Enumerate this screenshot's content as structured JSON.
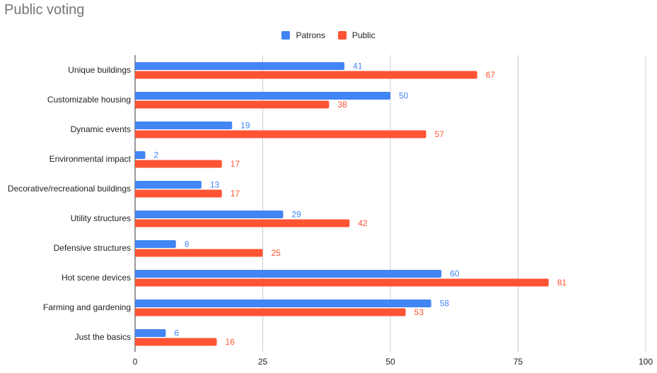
{
  "chart_data": {
    "type": "bar",
    "orientation": "horizontal",
    "title": "Public voting",
    "categories": [
      "Unique buildings",
      "Customizable housing",
      "Dynamic events",
      "Environmental impact",
      "Decorative/recreational buildings",
      "Utility structures",
      "Defensive structures",
      "Hot scene devices",
      "Farming and gardening",
      "Just the basics"
    ],
    "series": [
      {
        "name": "Patrons",
        "color": "#4285f4",
        "values": [
          41,
          50,
          19,
          2,
          13,
          29,
          8,
          60,
          58,
          6
        ]
      },
      {
        "name": "Public",
        "color": "#ff5434",
        "values": [
          67,
          38,
          57,
          17,
          17,
          42,
          25,
          81,
          53,
          16
        ]
      }
    ],
    "xlim": [
      0,
      100
    ],
    "xticks": [
      0,
      25,
      50,
      75,
      100
    ],
    "grid": true,
    "legend_position": "top"
  }
}
